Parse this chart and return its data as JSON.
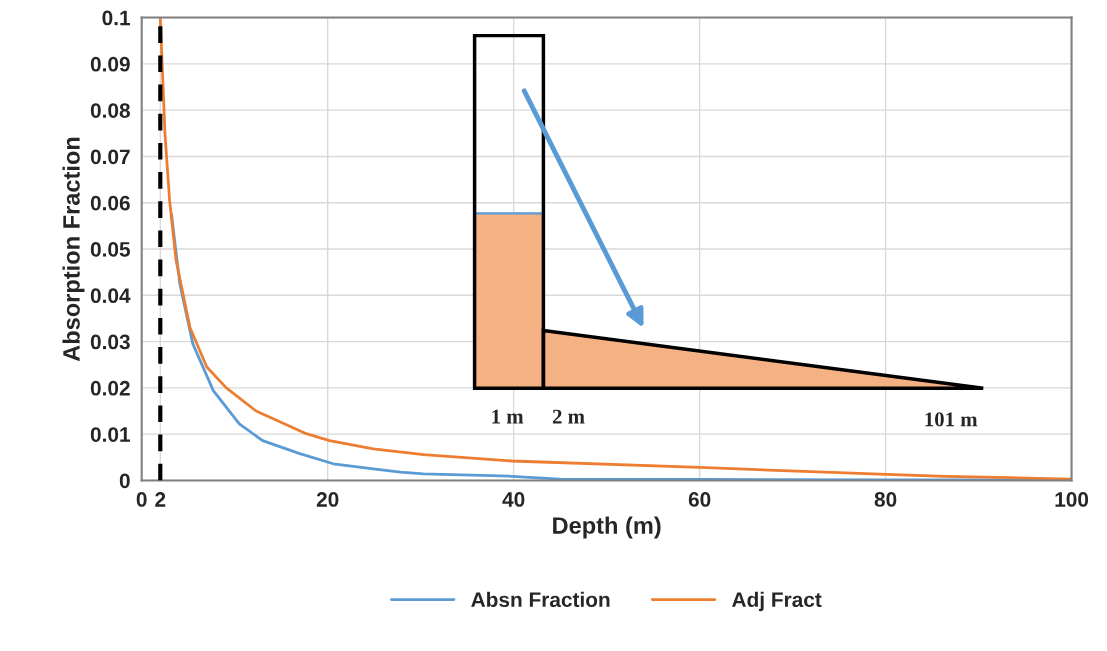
{
  "chart_data": {
    "type": "line",
    "xlabel": "Depth (m)",
    "ylabel": "Absorption Fraction",
    "xlim": [
      0,
      100
    ],
    "ylim": [
      0,
      0.1
    ],
    "xticks": [
      0,
      {
        "value": 2,
        "label": "2"
      },
      20,
      40,
      60,
      80,
      100
    ],
    "yticks": [
      0,
      0.01,
      0.02,
      0.03,
      0.04,
      0.05,
      0.06,
      0.07,
      0.08,
      0.09,
      0.1
    ],
    "grid": true,
    "legend": "bottom",
    "ref_lines": [
      {
        "axis": "x",
        "value": 2,
        "color": "#000000",
        "line_style": "dashed"
      }
    ],
    "annotations": [
      "1 m",
      "2 m",
      "101 m"
    ],
    "series": [
      {
        "name": "Absn Fraction",
        "color": "#5b9bd5",
        "x": [
          3.2,
          4.1,
          5.5,
          7.7,
          10.5,
          13.0,
          17.0,
          20.6,
          24.9,
          27.8,
          30.3,
          39.8,
          45,
          60,
          80,
          100
        ],
        "values": [
          0.0576,
          0.0425,
          0.0295,
          0.0194,
          0.0122,
          0.0086,
          0.0058,
          0.0036,
          0.0025,
          0.0018,
          0.0014,
          0.0009,
          0.0003,
          0.0002,
          0.0001,
          0.0001
        ]
      },
      {
        "name": "Adj Fract",
        "color": "#ed7d31",
        "x": [
          2.0,
          2.5,
          3.0,
          3.7,
          5.2,
          7.0,
          9.1,
          12.3,
          17.7,
          20.2,
          24.9,
          30.3,
          39.8,
          60,
          80.1,
          86.4,
          93.5,
          100
        ],
        "values": [
          0.1,
          0.075,
          0.0605,
          0.0475,
          0.033,
          0.0245,
          0.02,
          0.015,
          0.0101,
          0.0086,
          0.0068,
          0.0056,
          0.0042,
          0.0028,
          0.0013,
          0.0009,
          0.0006,
          0.0003
        ]
      }
    ]
  }
}
